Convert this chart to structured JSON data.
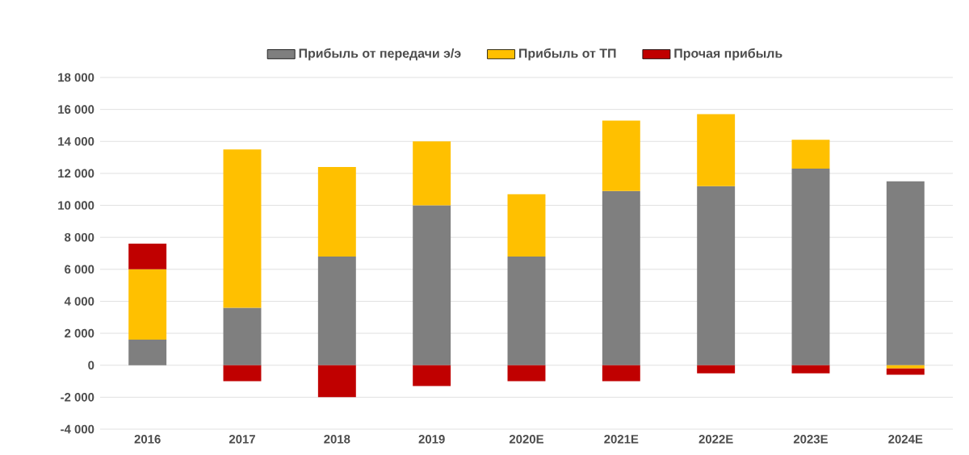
{
  "chart_data": {
    "type": "bar",
    "stacked": true,
    "categories": [
      "2016",
      "2017",
      "2018",
      "2019",
      "2020E",
      "2021E",
      "2022E",
      "2023E",
      "2024E"
    ],
    "series": [
      {
        "name": "Прибыль от передачи э/э",
        "color": "#7f7f7f",
        "values": [
          1600,
          3600,
          6800,
          10000,
          6800,
          10900,
          11200,
          12300,
          11500
        ]
      },
      {
        "name": "Прибыль от ТП",
        "color": "#ffc000",
        "values": [
          4400,
          9900,
          5600,
          4000,
          3900,
          4400,
          4500,
          1800,
          -200
        ]
      },
      {
        "name": "Прочая прибыль",
        "color": "#c00000",
        "values": [
          1600,
          -1000,
          -2000,
          -1300,
          -1000,
          -1000,
          -500,
          -500,
          -400
        ]
      }
    ],
    "ylim": [
      -4000,
      18000
    ],
    "yticks": [
      {
        "value": -4000,
        "label": "-4 000"
      },
      {
        "value": -2000,
        "label": "-2 000"
      },
      {
        "value": 0,
        "label": "0"
      },
      {
        "value": 2000,
        "label": "2 000"
      },
      {
        "value": 4000,
        "label": "4 000"
      },
      {
        "value": 6000,
        "label": "6 000"
      },
      {
        "value": 8000,
        "label": "8 000"
      },
      {
        "value": 10000,
        "label": "10 000"
      },
      {
        "value": 12000,
        "label": "12 000"
      },
      {
        "value": 14000,
        "label": "14 000"
      },
      {
        "value": 16000,
        "label": "16 000"
      },
      {
        "value": 18000,
        "label": "18 000"
      }
    ],
    "grid": "y",
    "legend": "top"
  }
}
